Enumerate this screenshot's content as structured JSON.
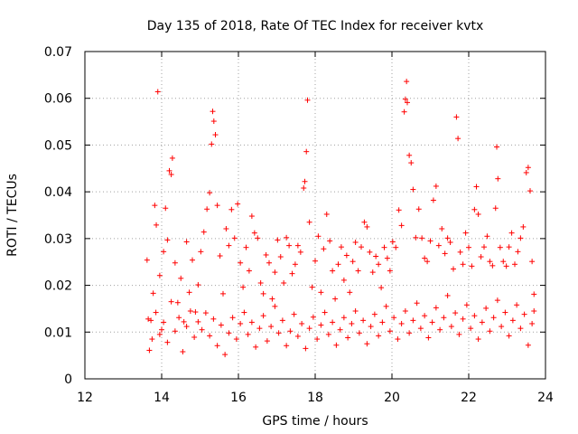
{
  "chart_data": {
    "type": "scatter",
    "title": "Day 135 of 2018, Rate Of TEC Index for receiver kvtx",
    "xlabel": "GPS time / hours",
    "ylabel": "ROTI / TECUs",
    "xlim": [
      12,
      24
    ],
    "ylim": [
      0,
      0.07
    ],
    "xticks": [
      12,
      14,
      16,
      18,
      20,
      22,
      24
    ],
    "xtick_labels": [
      "12",
      "14",
      "16",
      "18",
      "20",
      "22",
      "24"
    ],
    "yticks": [
      0,
      0.01,
      0.02,
      0.03,
      0.04,
      0.05,
      0.06,
      0.07
    ],
    "ytick_labels": [
      "0",
      "0.01",
      "0.02",
      "0.03",
      "0.04",
      "0.05",
      "0.06",
      "0.07"
    ],
    "grid": true,
    "marker": "+",
    "series": [
      {
        "name": "ROTI",
        "color": "#ff0000",
        "points": [
          [
            13.62,
            0.0254
          ],
          [
            13.68,
            0.0061
          ],
          [
            13.72,
            0.0125
          ],
          [
            13.78,
            0.0183
          ],
          [
            13.82,
            0.0371
          ],
          [
            13.86,
            0.0329
          ],
          [
            13.9,
            0.0614
          ],
          [
            13.95,
            0.0221
          ],
          [
            14.0,
            0.0105
          ],
          [
            14.05,
            0.0272
          ],
          [
            14.1,
            0.0365
          ],
          [
            14.15,
            0.0297
          ],
          [
            14.2,
            0.0445
          ],
          [
            14.25,
            0.0437
          ],
          [
            14.28,
            0.0472
          ],
          [
            14.35,
            0.0248
          ],
          [
            14.42,
            0.0163
          ],
          [
            14.5,
            0.0215
          ],
          [
            14.58,
            0.0122
          ],
          [
            14.65,
            0.0293
          ],
          [
            14.72,
            0.0185
          ],
          [
            14.8,
            0.0254
          ],
          [
            14.88,
            0.0143
          ],
          [
            14.95,
            0.0201
          ],
          [
            15.02,
            0.0272
          ],
          [
            15.1,
            0.0314
          ],
          [
            15.18,
            0.0363
          ],
          [
            15.25,
            0.0398
          ],
          [
            15.3,
            0.0502
          ],
          [
            15.33,
            0.0572
          ],
          [
            15.36,
            0.0551
          ],
          [
            15.4,
            0.0522
          ],
          [
            15.45,
            0.0371
          ],
          [
            15.52,
            0.0263
          ],
          [
            15.6,
            0.0182
          ],
          [
            15.68,
            0.0321
          ],
          [
            15.75,
            0.0285
          ],
          [
            15.82,
            0.0362
          ],
          [
            15.9,
            0.0301
          ],
          [
            15.98,
            0.0374
          ],
          [
            16.05,
            0.0248
          ],
          [
            16.12,
            0.0196
          ],
          [
            16.2,
            0.0281
          ],
          [
            16.28,
            0.0231
          ],
          [
            16.35,
            0.0348
          ],
          [
            16.42,
            0.0312
          ],
          [
            16.5,
            0.0301
          ],
          [
            16.58,
            0.0205
          ],
          [
            16.65,
            0.0182
          ],
          [
            16.72,
            0.0265
          ],
          [
            16.8,
            0.0248
          ],
          [
            16.88,
            0.0171
          ],
          [
            16.95,
            0.0228
          ],
          [
            17.02,
            0.0297
          ],
          [
            17.1,
            0.0261
          ],
          [
            17.18,
            0.0205
          ],
          [
            17.25,
            0.0302
          ],
          [
            17.32,
            0.0285
          ],
          [
            17.4,
            0.0225
          ],
          [
            17.48,
            0.0245
          ],
          [
            17.55,
            0.0285
          ],
          [
            17.62,
            0.0271
          ],
          [
            17.7,
            0.0408
          ],
          [
            17.73,
            0.0422
          ],
          [
            17.77,
            0.0486
          ],
          [
            17.8,
            0.0596
          ],
          [
            17.85,
            0.0335
          ],
          [
            17.92,
            0.0196
          ],
          [
            18.0,
            0.0252
          ],
          [
            18.08,
            0.0305
          ],
          [
            18.15,
            0.0185
          ],
          [
            18.22,
            0.0278
          ],
          [
            18.3,
            0.0352
          ],
          [
            18.38,
            0.0295
          ],
          [
            18.45,
            0.0231
          ],
          [
            18.52,
            0.0171
          ],
          [
            18.6,
            0.0245
          ],
          [
            18.68,
            0.0282
          ],
          [
            18.75,
            0.0211
          ],
          [
            18.82,
            0.0264
          ],
          [
            18.9,
            0.0185
          ],
          [
            18.98,
            0.0251
          ],
          [
            19.05,
            0.0292
          ],
          [
            19.12,
            0.0231
          ],
          [
            19.2,
            0.0282
          ],
          [
            19.28,
            0.0335
          ],
          [
            19.35,
            0.0325
          ],
          [
            19.42,
            0.0271
          ],
          [
            19.5,
            0.0228
          ],
          [
            19.58,
            0.0262
          ],
          [
            19.65,
            0.0245
          ],
          [
            19.72,
            0.0195
          ],
          [
            19.8,
            0.0281
          ],
          [
            19.88,
            0.0258
          ],
          [
            19.95,
            0.0231
          ],
          [
            20.02,
            0.0293
          ],
          [
            20.1,
            0.0281
          ],
          [
            20.18,
            0.0361
          ],
          [
            20.25,
            0.0328
          ],
          [
            20.32,
            0.0571
          ],
          [
            20.35,
            0.0598
          ],
          [
            20.38,
            0.0636
          ],
          [
            20.4,
            0.0591
          ],
          [
            20.45,
            0.0478
          ],
          [
            20.5,
            0.0462
          ],
          [
            20.55,
            0.0405
          ],
          [
            20.62,
            0.0302
          ],
          [
            20.7,
            0.0363
          ],
          [
            20.78,
            0.0301
          ],
          [
            20.85,
            0.0258
          ],
          [
            20.92,
            0.0251
          ],
          [
            21.0,
            0.0295
          ],
          [
            21.08,
            0.0382
          ],
          [
            21.15,
            0.0412
          ],
          [
            21.22,
            0.0285
          ],
          [
            21.3,
            0.0321
          ],
          [
            21.38,
            0.0268
          ],
          [
            21.45,
            0.0301
          ],
          [
            21.52,
            0.0292
          ],
          [
            21.6,
            0.0235
          ],
          [
            21.68,
            0.056
          ],
          [
            21.72,
            0.0514
          ],
          [
            21.78,
            0.0271
          ],
          [
            21.85,
            0.0245
          ],
          [
            21.92,
            0.0312
          ],
          [
            22.0,
            0.0281
          ],
          [
            22.08,
            0.0241
          ],
          [
            22.15,
            0.0362
          ],
          [
            22.2,
            0.0411
          ],
          [
            22.25,
            0.0352
          ],
          [
            22.32,
            0.0261
          ],
          [
            22.4,
            0.0282
          ],
          [
            22.48,
            0.0305
          ],
          [
            22.55,
            0.0251
          ],
          [
            22.62,
            0.0242
          ],
          [
            22.7,
            0.0365
          ],
          [
            22.73,
            0.0496
          ],
          [
            22.76,
            0.0428
          ],
          [
            22.82,
            0.0281
          ],
          [
            22.9,
            0.0251
          ],
          [
            22.98,
            0.0241
          ],
          [
            23.05,
            0.0282
          ],
          [
            23.12,
            0.0312
          ],
          [
            23.2,
            0.0245
          ],
          [
            23.28,
            0.0272
          ],
          [
            23.35,
            0.0301
          ],
          [
            23.42,
            0.0325
          ],
          [
            23.5,
            0.0441
          ],
          [
            23.55,
            0.0452
          ],
          [
            23.6,
            0.0402
          ],
          [
            23.65,
            0.0251
          ],
          [
            23.7,
            0.0181
          ],
          [
            13.65,
            0.0128
          ],
          [
            13.75,
            0.0085
          ],
          [
            13.85,
            0.0142
          ],
          [
            13.95,
            0.0095
          ],
          [
            14.05,
            0.0121
          ],
          [
            14.15,
            0.0078
          ],
          [
            14.25,
            0.0165
          ],
          [
            14.35,
            0.0102
          ],
          [
            14.45,
            0.0131
          ],
          [
            14.55,
            0.0058
          ],
          [
            14.65,
            0.0112
          ],
          [
            14.75,
            0.0145
          ],
          [
            14.85,
            0.0089
          ],
          [
            14.95,
            0.0122
          ],
          [
            15.05,
            0.0105
          ],
          [
            15.15,
            0.0141
          ],
          [
            15.25,
            0.0092
          ],
          [
            15.35,
            0.0128
          ],
          [
            15.45,
            0.0071
          ],
          [
            15.55,
            0.0115
          ],
          [
            15.65,
            0.0052
          ],
          [
            15.75,
            0.0098
          ],
          [
            15.85,
            0.0131
          ],
          [
            15.95,
            0.0085
          ],
          [
            16.05,
            0.0118
          ],
          [
            16.15,
            0.0142
          ],
          [
            16.25,
            0.0095
          ],
          [
            16.35,
            0.0121
          ],
          [
            16.45,
            0.0068
          ],
          [
            16.55,
            0.0108
          ],
          [
            16.65,
            0.0135
          ],
          [
            16.75,
            0.0081
          ],
          [
            16.85,
            0.0112
          ],
          [
            16.95,
            0.0155
          ],
          [
            17.05,
            0.0098
          ],
          [
            17.15,
            0.0125
          ],
          [
            17.25,
            0.0071
          ],
          [
            17.35,
            0.0102
          ],
          [
            17.45,
            0.0138
          ],
          [
            17.55,
            0.0091
          ],
          [
            17.65,
            0.0118
          ],
          [
            17.75,
            0.0065
          ],
          [
            17.85,
            0.0108
          ],
          [
            17.95,
            0.0132
          ],
          [
            18.05,
            0.0085
          ],
          [
            18.15,
            0.0115
          ],
          [
            18.25,
            0.0142
          ],
          [
            18.35,
            0.0095
          ],
          [
            18.45,
            0.0121
          ],
          [
            18.55,
            0.0072
          ],
          [
            18.65,
            0.0105
          ],
          [
            18.75,
            0.0131
          ],
          [
            18.85,
            0.0088
          ],
          [
            18.95,
            0.0118
          ],
          [
            19.05,
            0.0145
          ],
          [
            19.15,
            0.0098
          ],
          [
            19.25,
            0.0125
          ],
          [
            19.35,
            0.0075
          ],
          [
            19.45,
            0.0112
          ],
          [
            19.55,
            0.0138
          ],
          [
            19.65,
            0.0092
          ],
          [
            19.75,
            0.0121
          ],
          [
            19.85,
            0.0155
          ],
          [
            19.95,
            0.0102
          ],
          [
            20.05,
            0.0131
          ],
          [
            20.15,
            0.0085
          ],
          [
            20.25,
            0.0118
          ],
          [
            20.35,
            0.0145
          ],
          [
            20.45,
            0.0098
          ],
          [
            20.55,
            0.0125
          ],
          [
            20.65,
            0.0162
          ],
          [
            20.75,
            0.0108
          ],
          [
            20.85,
            0.0135
          ],
          [
            20.95,
            0.0088
          ],
          [
            21.05,
            0.0121
          ],
          [
            21.15,
            0.0152
          ],
          [
            21.25,
            0.0105
          ],
          [
            21.35,
            0.0131
          ],
          [
            21.45,
            0.0178
          ],
          [
            21.55,
            0.0112
          ],
          [
            21.65,
            0.0141
          ],
          [
            21.75,
            0.0095
          ],
          [
            21.85,
            0.0128
          ],
          [
            21.95,
            0.0158
          ],
          [
            22.05,
            0.0108
          ],
          [
            22.15,
            0.0135
          ],
          [
            22.25,
            0.0085
          ],
          [
            22.35,
            0.0121
          ],
          [
            22.45,
            0.0151
          ],
          [
            22.55,
            0.0102
          ],
          [
            22.65,
            0.0131
          ],
          [
            22.75,
            0.0168
          ],
          [
            22.85,
            0.0112
          ],
          [
            22.95,
            0.0142
          ],
          [
            23.05,
            0.0092
          ],
          [
            23.15,
            0.0125
          ],
          [
            23.25,
            0.0158
          ],
          [
            23.35,
            0.0108
          ],
          [
            23.45,
            0.0138
          ],
          [
            23.55,
            0.0072
          ],
          [
            23.65,
            0.0118
          ],
          [
            23.7,
            0.0145
          ]
        ]
      }
    ]
  }
}
